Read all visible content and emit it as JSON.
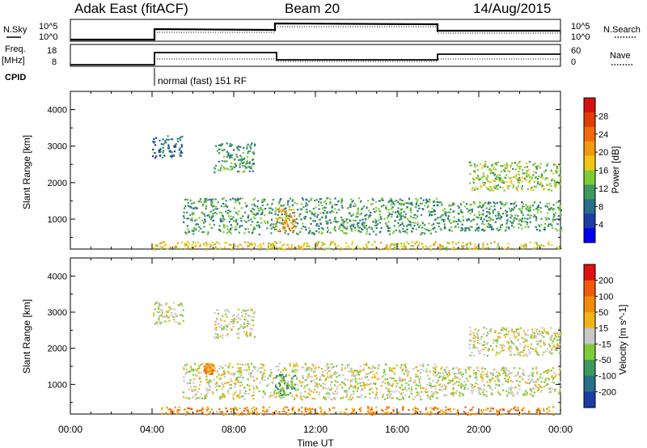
{
  "header": {
    "station": "Adak East (fitACF)",
    "beam": "Beam 20",
    "date": "14/Aug/2015"
  },
  "panels": {
    "nsky": {
      "left_label": "N.Sky",
      "left_ticks": [
        "10^5",
        "10^0"
      ],
      "right_ticks": [
        "10^5",
        "10^0"
      ],
      "right_label": "N.Search"
    },
    "freq": {
      "left_label_line1": "Freq.",
      "left_label_line2": "[MHz]",
      "left_ticks": [
        "18",
        "8"
      ],
      "right_ticks": [
        "60",
        "0"
      ],
      "right_label": "Nave"
    },
    "cpid": {
      "label": "CPID",
      "mode": "normal (fast) 151 RF"
    }
  },
  "chart_data": [
    {
      "type": "heatmap",
      "name": "power",
      "ylabel": "Slant Range [km]",
      "xlabel": "",
      "y_ticks": [
        1000,
        2000,
        3000,
        4000
      ],
      "ylim": [
        180,
        4500
      ],
      "colorbar": {
        "label": "Power [dB]",
        "ticks": [
          4,
          8,
          12,
          16,
          20,
          24,
          28
        ],
        "colors": [
          "#0000ee",
          "#1c3ca6",
          "#2a6e8a",
          "#3c9a5c",
          "#7ecb3a",
          "#f0c814",
          "#f49a12",
          "#f06c0a",
          "#e03c08",
          "#d41010"
        ]
      },
      "echo_regions": [
        {
          "x_start": 4.0,
          "x_end": 5.5,
          "y_start": 2700,
          "y_end": 3300,
          "level": 2
        },
        {
          "x_start": 7.0,
          "x_end": 9.0,
          "y_start": 2300,
          "y_end": 3100,
          "level": 3
        },
        {
          "x_start": 5.5,
          "x_end": 18.0,
          "y_start": 600,
          "y_end": 1600,
          "level": 3
        },
        {
          "x_start": 10.0,
          "x_end": 11.0,
          "y_start": 700,
          "y_end": 1300,
          "level": 6
        },
        {
          "x_start": 18.0,
          "x_end": 24.0,
          "y_start": 700,
          "y_end": 1500,
          "level": 3
        },
        {
          "x_start": 19.5,
          "x_end": 24.0,
          "y_start": 1800,
          "y_end": 2600,
          "level": 4
        },
        {
          "x_start": 4.0,
          "x_end": 24.0,
          "y_start": 180,
          "y_end": 400,
          "level": 5
        }
      ]
    },
    {
      "type": "heatmap",
      "name": "velocity",
      "ylabel": "Slant Range [km]",
      "xlabel": "Time UT",
      "x_tick_labels": [
        "00:00",
        "04:00",
        "08:00",
        "12:00",
        "16:00",
        "20:00",
        "00:00"
      ],
      "x_ticks_hours": [
        0,
        4,
        8,
        12,
        16,
        20,
        24
      ],
      "y_ticks": [
        1000,
        2000,
        3000,
        4000
      ],
      "ylim": [
        180,
        4500
      ],
      "colorbar": {
        "label": "Velocity [m s^-1]",
        "ticks": [
          200,
          100,
          50,
          15,
          -15,
          -50,
          -100,
          -200
        ],
        "colors": [
          "#1c3ca6",
          "#2a6e8a",
          "#3c9a5c",
          "#7ecb3a",
          "#c8c8c8",
          "#f0b414",
          "#f08c0a",
          "#f05a0a",
          "#e01010"
        ]
      },
      "echo_regions": [
        {
          "x_start": 4.0,
          "x_end": 5.5,
          "y_start": 2700,
          "y_end": 3300,
          "level": 4
        },
        {
          "x_start": 7.0,
          "x_end": 9.0,
          "y_start": 2300,
          "y_end": 3100,
          "level": 4
        },
        {
          "x_start": 5.5,
          "x_end": 18.0,
          "y_start": 600,
          "y_end": 1600,
          "level": 4
        },
        {
          "x_start": 10.0,
          "x_end": 11.0,
          "y_start": 700,
          "y_end": 1300,
          "level": 2
        },
        {
          "x_start": 6.5,
          "x_end": 7.0,
          "y_start": 1300,
          "y_end": 1600,
          "level": 6
        },
        {
          "x_start": 18.0,
          "x_end": 24.0,
          "y_start": 700,
          "y_end": 1500,
          "level": 4
        },
        {
          "x_start": 19.5,
          "x_end": 24.0,
          "y_start": 1800,
          "y_end": 2600,
          "level": 4
        },
        {
          "x_start": 4.0,
          "x_end": 24.0,
          "y_start": 180,
          "y_end": 400,
          "level": 6
        }
      ]
    }
  ]
}
